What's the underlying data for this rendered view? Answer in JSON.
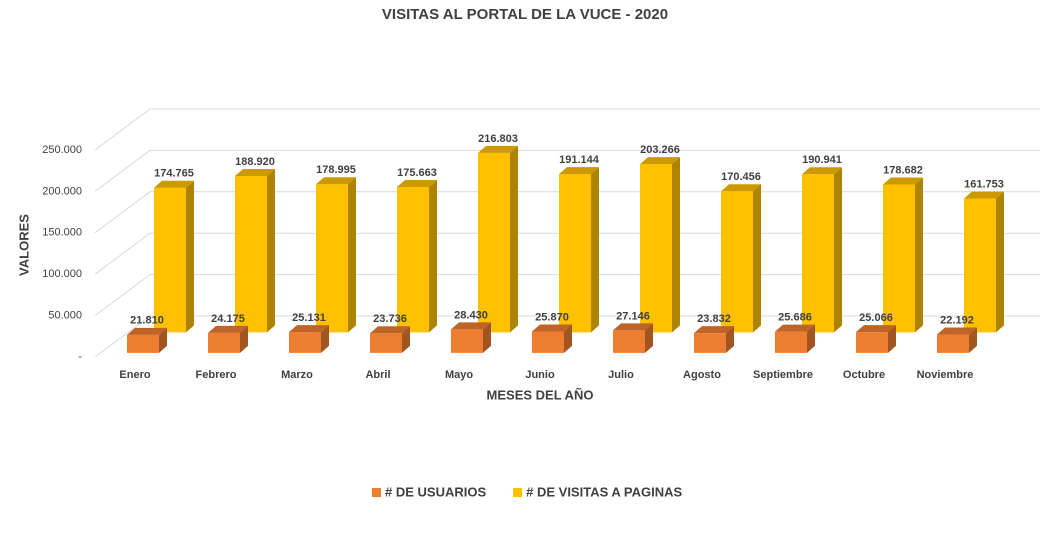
{
  "chart_data": {
    "type": "bar3d",
    "title": "VISITAS AL PORTAL DE LA VUCE - 2020",
    "x_label": "MESES DEL AÑO",
    "y_label": "VALORES",
    "categories": [
      "Enero",
      "Febrero",
      "Marzo",
      "Abril",
      "Mayo",
      "Junio",
      "Julio",
      "Agosto",
      "Septiembre",
      "Octubre",
      "Noviembre"
    ],
    "series": [
      {
        "name": "# DE USUARIOS",
        "color": "#ED7D31",
        "values": [
          21810,
          24175,
          25131,
          23736,
          28430,
          25870,
          27146,
          23832,
          25686,
          25066,
          22192
        ],
        "value_labels": [
          "21.810",
          "24.175",
          "25.131",
          "23.736",
          "28.430",
          "25.870",
          "27.146",
          "23.832",
          "25.686",
          "25.066",
          "22.192"
        ]
      },
      {
        "name": "# DE VISITAS A PAGINAS",
        "color": "#FFC000",
        "values": [
          174765,
          188920,
          178995,
          175663,
          216803,
          191144,
          203266,
          170456,
          190941,
          178682,
          161753
        ],
        "value_labels": [
          "174.765",
          "188.920",
          "178.995",
          "175.663",
          "216.803",
          "191.144",
          "203.266",
          "170.456",
          "190.941",
          "178.682",
          "161.753"
        ]
      }
    ],
    "ylim": [
      0,
      250000
    ],
    "yticks": [
      {
        "value": 0,
        "label": "-"
      },
      {
        "value": 50000,
        "label": "50.000"
      },
      {
        "value": 100000,
        "label": "100.000"
      },
      {
        "value": 150000,
        "label": "150.000"
      },
      {
        "value": 200000,
        "label": "200.000"
      },
      {
        "value": 250000,
        "label": "250.000"
      }
    ],
    "grid": true,
    "legend": "bottom"
  }
}
